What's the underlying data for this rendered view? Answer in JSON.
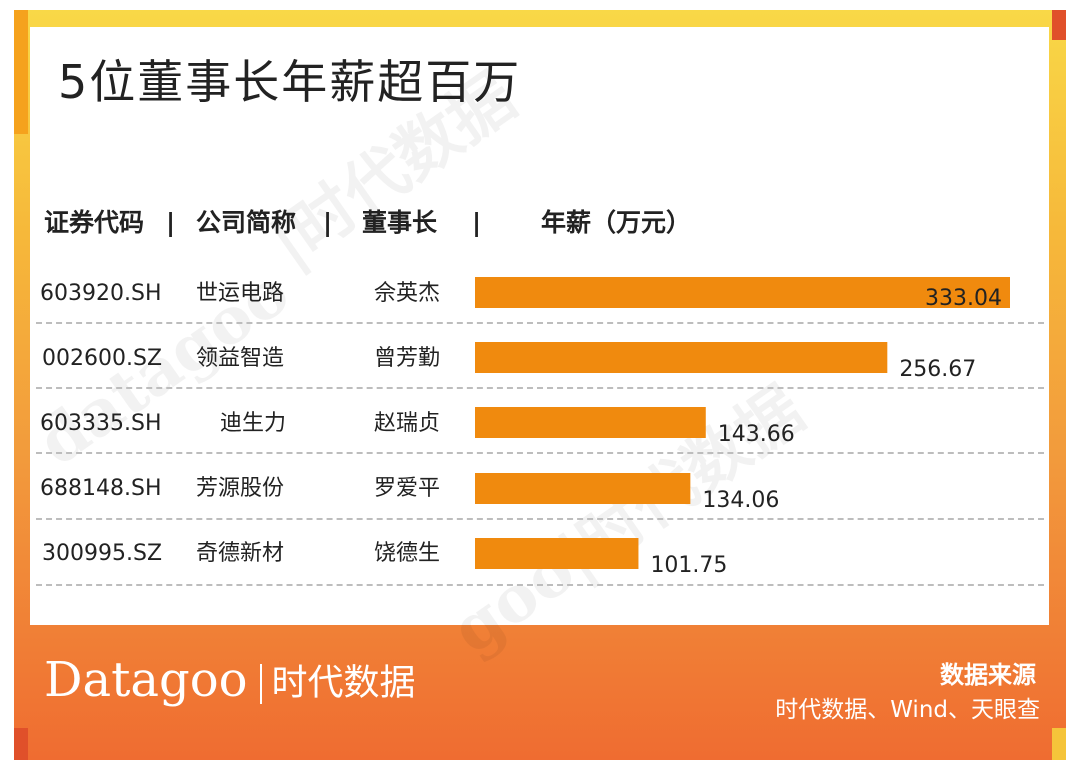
{
  "title": "5位董事长年薪超百万",
  "headers": {
    "code": "证券代码",
    "company": "公司简称",
    "chairman": "董事长",
    "salary": "年薪（万元）",
    "separator": "|"
  },
  "rows": [
    {
      "code": "603920.SH",
      "company": "世运电路",
      "chairman": "佘英杰",
      "salary": "333.04"
    },
    {
      "code": "002600.SZ",
      "company": "领益智造",
      "chairman": "曾芳勤",
      "salary": "256.67"
    },
    {
      "code": "603335.SH",
      "company": "迪生力",
      "chairman": "赵瑞贞",
      "salary": "143.66"
    },
    {
      "code": "688148.SH",
      "company": "芳源股份",
      "chairman": "罗爱平",
      "salary": "134.06"
    },
    {
      "code": "300995.SZ",
      "company": "奇德新材",
      "chairman": "饶德生",
      "salary": "101.75"
    }
  ],
  "chart_data": {
    "type": "bar",
    "orientation": "horizontal",
    "categories": [
      "佘英杰",
      "曾芳勤",
      "赵瑞贞",
      "罗爱平",
      "饶德生"
    ],
    "values": [
      333.04,
      256.67,
      143.66,
      134.06,
      101.75
    ],
    "bar_color": "#f08a0e",
    "xlim": [
      0,
      333.04
    ]
  },
  "footer": {
    "logo_latin": "Datagoo",
    "logo_cn": "时代数据",
    "source_label": "数据来源",
    "source_text": "时代数据、Wind、天眼查"
  },
  "colors": {
    "frame_top": "#f9d847",
    "frame_bottom": "#ef6c31",
    "bar": "#f08a0e"
  }
}
